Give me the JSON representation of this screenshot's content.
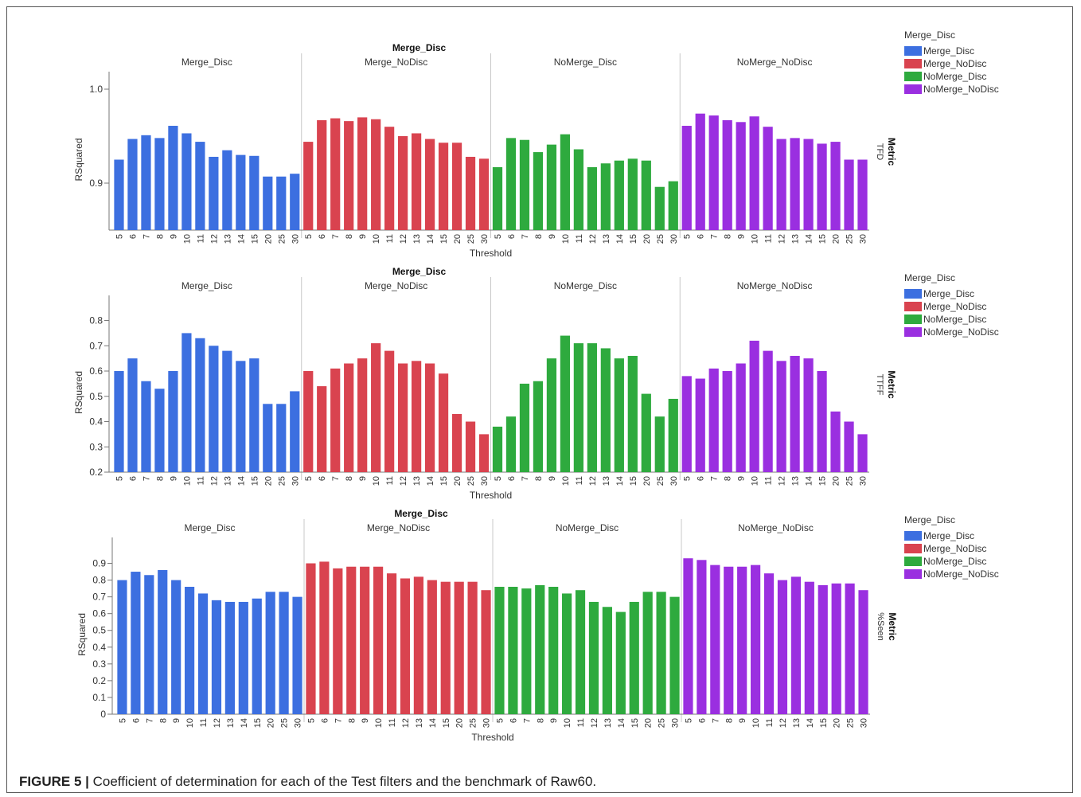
{
  "figure_caption": {
    "label": "FIGURE 5 |",
    "text": "Coefficient of determination for each of the Test filters and the benchmark of Raw60."
  },
  "colors": {
    "Merge_Disc": "#3c6fe0",
    "Merge_NoDisc": "#d9434f",
    "NoMerge_Disc": "#2eaa3e",
    "NoMerge_NoDisc": "#9a2fe0"
  },
  "chart_data": [
    {
      "type": "bar",
      "title": "Merge_Disc",
      "xlabel": "Threshold",
      "ylabel": "RSquared",
      "side_label": "TFD",
      "side_title": "Metric",
      "ylim": [
        0.85,
        1.0
      ],
      "yticks": [
        "0.9",
        "1.0"
      ],
      "ytick_values": [
        0.9,
        1.0
      ],
      "grid": false,
      "legend_title": "Merge_Disc",
      "legend_position": "right",
      "categories": [
        "5",
        "6",
        "7",
        "8",
        "9",
        "10",
        "11",
        "12",
        "13",
        "14",
        "15",
        "20",
        "25",
        "30"
      ],
      "series": [
        {
          "name": "Merge_Disc",
          "values": [
            0.925,
            0.947,
            0.951,
            0.948,
            0.961,
            0.953,
            0.944,
            0.928,
            0.935,
            0.93,
            0.929,
            0.907,
            0.907,
            0.91
          ]
        },
        {
          "name": "Merge_NoDisc",
          "values": [
            0.944,
            0.967,
            0.969,
            0.966,
            0.97,
            0.968,
            0.96,
            0.95,
            0.953,
            0.947,
            0.943,
            0.943,
            0.928,
            0.926
          ]
        },
        {
          "name": "NoMerge_Disc",
          "values": [
            0.917,
            0.948,
            0.946,
            0.933,
            0.941,
            0.952,
            0.936,
            0.917,
            0.921,
            0.924,
            0.926,
            0.924,
            0.896,
            0.902
          ]
        },
        {
          "name": "NoMerge_NoDisc",
          "values": [
            0.961,
            0.974,
            0.972,
            0.967,
            0.965,
            0.971,
            0.96,
            0.947,
            0.948,
            0.947,
            0.942,
            0.944,
            0.925,
            0.925
          ]
        }
      ]
    },
    {
      "type": "bar",
      "title": "Merge_Disc",
      "xlabel": "Threshold",
      "ylabel": "RSquared",
      "side_label": "TTFF",
      "side_title": "Metric",
      "ylim": [
        0.2,
        0.83
      ],
      "yticks": [
        "0.2",
        "0.3",
        "0.4",
        "0.5",
        "0.6",
        "0.7",
        "0.8"
      ],
      "ytick_values": [
        0.2,
        0.3,
        0.4,
        0.5,
        0.6,
        0.7,
        0.8
      ],
      "grid": false,
      "legend_title": "Merge_Disc",
      "legend_position": "right",
      "categories": [
        "5",
        "6",
        "7",
        "8",
        "9",
        "10",
        "11",
        "12",
        "13",
        "14",
        "15",
        "20",
        "25",
        "30"
      ],
      "series": [
        {
          "name": "Merge_Disc",
          "values": [
            0.6,
            0.65,
            0.56,
            0.53,
            0.6,
            0.75,
            0.73,
            0.7,
            0.68,
            0.64,
            0.65,
            0.47,
            0.47,
            0.52
          ]
        },
        {
          "name": "Merge_NoDisc",
          "values": [
            0.6,
            0.54,
            0.61,
            0.63,
            0.65,
            0.71,
            0.68,
            0.63,
            0.64,
            0.63,
            0.59,
            0.43,
            0.4,
            0.35
          ]
        },
        {
          "name": "NoMerge_Disc",
          "values": [
            0.38,
            0.42,
            0.55,
            0.56,
            0.65,
            0.74,
            0.71,
            0.71,
            0.69,
            0.65,
            0.66,
            0.51,
            0.42,
            0.49
          ]
        },
        {
          "name": "NoMerge_NoDisc",
          "values": [
            0.58,
            0.57,
            0.61,
            0.6,
            0.63,
            0.72,
            0.68,
            0.64,
            0.66,
            0.65,
            0.6,
            0.44,
            0.4,
            0.35
          ]
        }
      ]
    },
    {
      "type": "bar",
      "title": "Merge_Disc",
      "xlabel": "Threshold",
      "ylabel": "RSquared",
      "side_label": "%Seen",
      "side_title": "Metric",
      "ylim": [
        0,
        0.95
      ],
      "yticks": [
        "0",
        "0.1",
        "0.2",
        "0.3",
        "0.4",
        "0.5",
        "0.6",
        "0.7",
        "0.8",
        "0.9"
      ],
      "ytick_values": [
        0,
        0.1,
        0.2,
        0.3,
        0.4,
        0.5,
        0.6,
        0.7,
        0.8,
        0.9
      ],
      "grid": false,
      "legend_title": "Merge_Disc",
      "legend_position": "right",
      "categories": [
        "5",
        "6",
        "7",
        "8",
        "9",
        "10",
        "11",
        "12",
        "13",
        "14",
        "15",
        "20",
        "25",
        "30"
      ],
      "series": [
        {
          "name": "Merge_Disc",
          "values": [
            0.8,
            0.85,
            0.83,
            0.86,
            0.8,
            0.76,
            0.72,
            0.68,
            0.67,
            0.67,
            0.69,
            0.73,
            0.73,
            0.7
          ]
        },
        {
          "name": "Merge_NoDisc",
          "values": [
            0.9,
            0.91,
            0.87,
            0.88,
            0.88,
            0.88,
            0.84,
            0.81,
            0.82,
            0.8,
            0.79,
            0.79,
            0.79,
            0.74
          ]
        },
        {
          "name": "NoMerge_Disc",
          "values": [
            0.76,
            0.76,
            0.75,
            0.77,
            0.76,
            0.72,
            0.74,
            0.67,
            0.64,
            0.61,
            0.67,
            0.73,
            0.73,
            0.7
          ]
        },
        {
          "name": "NoMerge_NoDisc",
          "values": [
            0.93,
            0.92,
            0.89,
            0.88,
            0.88,
            0.89,
            0.84,
            0.8,
            0.82,
            0.79,
            0.77,
            0.78,
            0.78,
            0.74
          ]
        }
      ]
    }
  ]
}
